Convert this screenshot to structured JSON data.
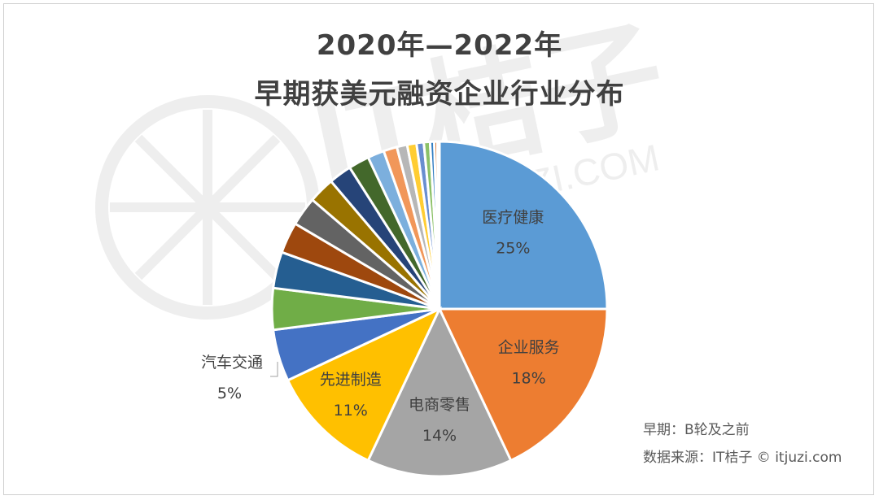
{
  "chart_data": {
    "type": "pie",
    "title_line1": "2020年—2022年",
    "title_line2": "早期获美元融资企业行业分布",
    "slices": [
      {
        "label": "医疗健康",
        "value_label": "25%",
        "value": 25,
        "color": "#5b9bd5"
      },
      {
        "label": "企业服务",
        "value_label": "18%",
        "value": 18,
        "color": "#ed7d31"
      },
      {
        "label": "电商零售",
        "value_label": "14%",
        "value": 14,
        "color": "#a5a5a5"
      },
      {
        "label": "先进制造",
        "value_label": "11%",
        "value": 11,
        "color": "#ffc000"
      },
      {
        "label": "汽车交通",
        "value_label": "5%",
        "value": 5,
        "color": "#4472c4"
      },
      {
        "label": "",
        "value_label": "",
        "value": 4,
        "color": "#70ad47"
      },
      {
        "label": "",
        "value_label": "",
        "value": 3.5,
        "color": "#255e91"
      },
      {
        "label": "",
        "value_label": "",
        "value": 3,
        "color": "#9e480e"
      },
      {
        "label": "",
        "value_label": "",
        "value": 2.8,
        "color": "#636363"
      },
      {
        "label": "",
        "value_label": "",
        "value": 2.5,
        "color": "#997300"
      },
      {
        "label": "",
        "value_label": "",
        "value": 2.2,
        "color": "#264478"
      },
      {
        "label": "",
        "value_label": "",
        "value": 2.0,
        "color": "#43682b"
      },
      {
        "label": "",
        "value_label": "",
        "value": 1.6,
        "color": "#7cafdd"
      },
      {
        "label": "",
        "value_label": "",
        "value": 1.3,
        "color": "#f1975a"
      },
      {
        "label": "",
        "value_label": "",
        "value": 1.0,
        "color": "#b7b7b7"
      },
      {
        "label": "",
        "value_label": "",
        "value": 0.9,
        "color": "#ffcd33"
      },
      {
        "label": "",
        "value_label": "",
        "value": 0.7,
        "color": "#698ed0"
      },
      {
        "label": "",
        "value_label": "",
        "value": 0.6,
        "color": "#8cc168"
      },
      {
        "label": "",
        "value_label": "",
        "value": 0.4,
        "color": "#327dc2"
      },
      {
        "label": "",
        "value_label": "",
        "value": 0.3,
        "color": "#d26012"
      },
      {
        "label": "",
        "value_label": "",
        "value": 0.2,
        "color": "#848484"
      }
    ]
  },
  "notes": {
    "line1": "早期：B轮及之前",
    "line2": "数据来源：IT桔子 © itjuzi.com"
  },
  "watermark": {
    "text": "IT桔子",
    "sub": "ITJUZI.COM"
  }
}
